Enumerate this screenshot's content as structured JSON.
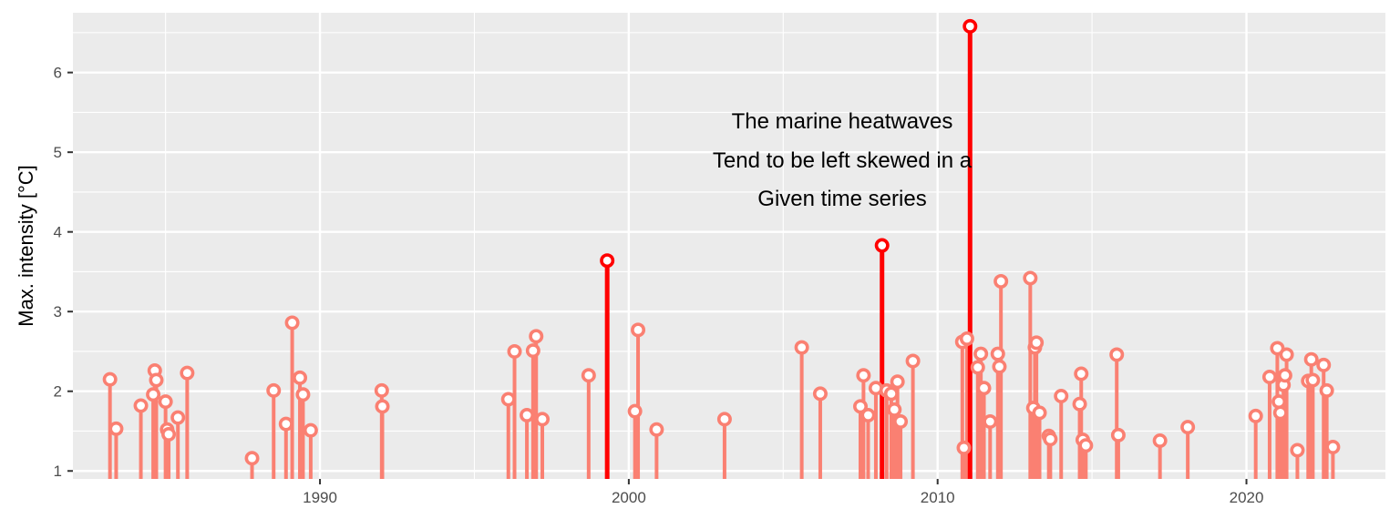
{
  "chart_data": {
    "type": "lollipop",
    "xlabel": "",
    "ylabel": "Max. intensity [°C]",
    "xlim": [
      1982,
      2024.5
    ],
    "ylim": [
      0.9,
      6.75
    ],
    "x_ticks": [
      1990,
      2000,
      2010,
      2020
    ],
    "y_ticks": [
      1,
      2,
      3,
      4,
      5,
      6
    ],
    "grid": true,
    "panel_background": "#ebebeb",
    "colors": {
      "normal": "#fa8072",
      "highlight": "#ff0000",
      "point_fill": "#ffffff"
    },
    "annotation": [
      "The marine heatwaves",
      "Tend to be left skewed in a",
      "Given time series"
    ],
    "series": [
      {
        "emphasis": "normal",
        "points": [
          [
            1983.2,
            2.15
          ],
          [
            1983.4,
            1.53
          ],
          [
            1984.2,
            1.82
          ],
          [
            1984.6,
            1.96
          ],
          [
            1984.65,
            2.26
          ],
          [
            1984.7,
            2.14
          ],
          [
            1985.0,
            1.87
          ],
          [
            1985.05,
            1.52
          ],
          [
            1985.1,
            1.46
          ],
          [
            1985.4,
            1.67
          ],
          [
            1985.7,
            2.23
          ],
          [
            1987.8,
            1.16
          ],
          [
            1988.5,
            2.01
          ],
          [
            1988.9,
            1.59
          ],
          [
            1989.1,
            2.86
          ],
          [
            1989.35,
            2.17
          ],
          [
            1989.45,
            1.96
          ],
          [
            1989.7,
            1.51
          ],
          [
            1992.0,
            2.01
          ],
          [
            1992.02,
            1.81
          ],
          [
            1996.1,
            1.9
          ],
          [
            1996.3,
            2.5
          ],
          [
            1996.7,
            1.7
          ],
          [
            1996.9,
            2.51
          ],
          [
            1997.0,
            2.69
          ],
          [
            1997.2,
            1.65
          ],
          [
            1998.7,
            2.2
          ],
          [
            2000.2,
            1.75
          ],
          [
            2000.3,
            2.77
          ],
          [
            2000.9,
            1.52
          ],
          [
            2003.1,
            1.65
          ],
          [
            2005.6,
            2.55
          ],
          [
            2006.2,
            1.97
          ],
          [
            2007.5,
            1.81
          ],
          [
            2007.6,
            2.2
          ],
          [
            2007.75,
            1.7
          ],
          [
            2008.0,
            2.04
          ],
          [
            2008.35,
            2.01
          ],
          [
            2008.5,
            1.97
          ],
          [
            2008.6,
            1.77
          ],
          [
            2008.7,
            2.12
          ],
          [
            2008.8,
            1.62
          ],
          [
            2009.2,
            2.38
          ],
          [
            2010.8,
            2.62
          ],
          [
            2010.85,
            1.29
          ],
          [
            2010.95,
            2.66
          ],
          [
            2011.3,
            2.3
          ],
          [
            2011.4,
            2.47
          ],
          [
            2011.5,
            2.04
          ],
          [
            2011.7,
            1.62
          ],
          [
            2011.95,
            2.47
          ],
          [
            2012.0,
            2.31
          ],
          [
            2012.05,
            3.38
          ],
          [
            2013.0,
            3.42
          ],
          [
            2013.1,
            1.79
          ],
          [
            2013.15,
            2.55
          ],
          [
            2013.2,
            2.61
          ],
          [
            2013.3,
            1.73
          ],
          [
            2013.6,
            1.44
          ],
          [
            2013.65,
            1.4
          ],
          [
            2014.0,
            1.94
          ],
          [
            2014.6,
            1.84
          ],
          [
            2014.65,
            2.22
          ],
          [
            2014.7,
            1.39
          ],
          [
            2014.8,
            1.32
          ],
          [
            2015.8,
            2.46
          ],
          [
            2015.85,
            1.45
          ],
          [
            2017.2,
            1.38
          ],
          [
            2018.1,
            1.55
          ],
          [
            2020.3,
            1.69
          ],
          [
            2020.75,
            2.18
          ],
          [
            2021.0,
            2.54
          ],
          [
            2021.05,
            1.87
          ],
          [
            2021.1,
            1.73
          ],
          [
            2021.2,
            2.08
          ],
          [
            2021.25,
            2.2
          ],
          [
            2021.3,
            2.46
          ],
          [
            2021.65,
            1.26
          ],
          [
            2022.0,
            2.13
          ],
          [
            2022.1,
            2.4
          ],
          [
            2022.15,
            2.14
          ],
          [
            2022.5,
            2.33
          ],
          [
            2022.6,
            2.01
          ],
          [
            2022.8,
            1.3
          ]
        ]
      },
      {
        "emphasis": "highlight",
        "points": [
          [
            1999.3,
            3.64
          ],
          [
            2008.2,
            3.83
          ],
          [
            2011.05,
            6.58
          ]
        ]
      }
    ]
  }
}
